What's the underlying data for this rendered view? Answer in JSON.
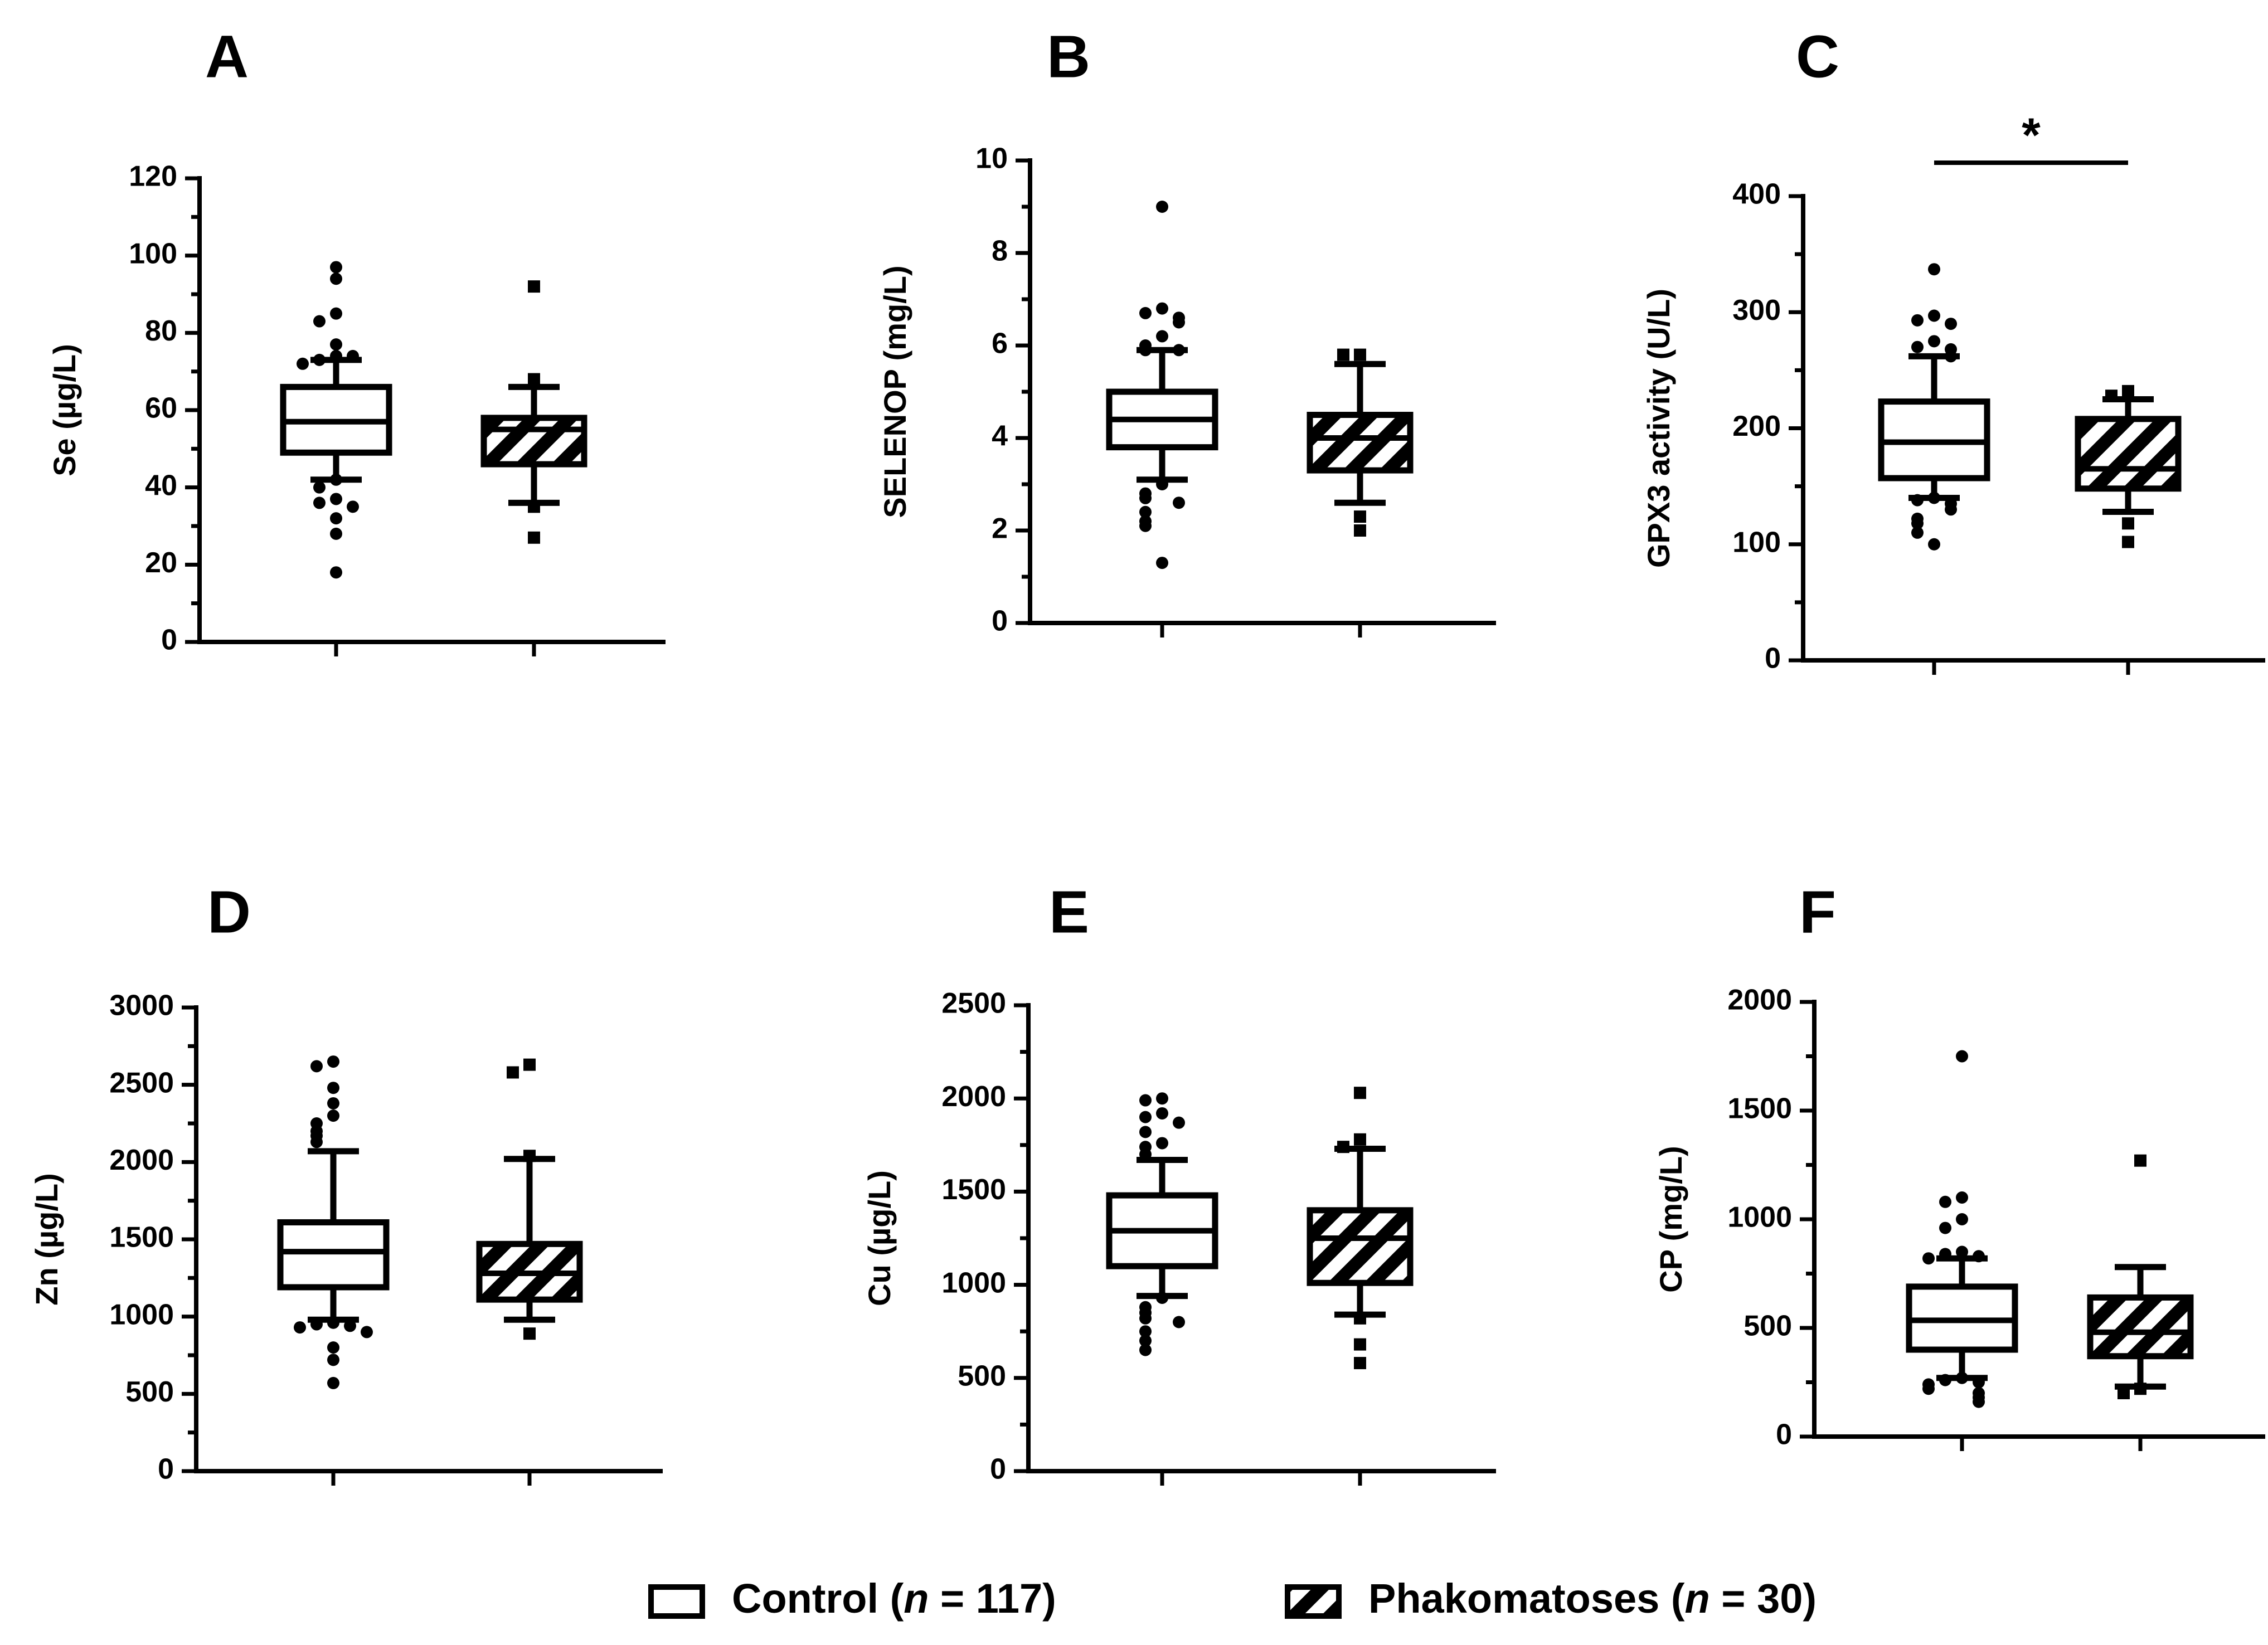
{
  "legend": [
    {
      "label": "Control (",
      "italic": "n",
      "rest": " = 117)",
      "pattern": "open"
    },
    {
      "label": "Phakomatoses (",
      "italic": "n",
      "rest": " = 30)",
      "pattern": "hatched"
    }
  ],
  "colors": {
    "ink": "#000000",
    "background": "#ffffff"
  },
  "chart_data": [
    {
      "panel": "A",
      "type": "box",
      "ylabel": "Se (µg/L)",
      "ylim": [
        0,
        120
      ],
      "yticks": [
        0,
        20,
        40,
        60,
        80,
        100,
        120
      ],
      "groups": [
        {
          "name": "Control (n = 117)",
          "whisker_low": 42,
          "q1": 49,
          "median": 57,
          "q3": 66,
          "whisker_high": 73,
          "outliers": [
            97,
            94,
            85,
            83,
            77,
            74,
            73,
            74,
            72,
            42,
            40,
            37,
            36,
            35,
            32,
            28,
            18
          ]
        },
        {
          "name": "Phakomatoses (n = 30)",
          "whisker_low": 36,
          "q1": 46,
          "median": 55,
          "q3": 58,
          "whisker_high": 66,
          "outliers": [
            92,
            68,
            35,
            27
          ]
        }
      ]
    },
    {
      "panel": "B",
      "type": "box",
      "ylabel": "SELENOP (mg/L)",
      "ylim": [
        0,
        10
      ],
      "yticks": [
        0,
        2,
        4,
        6,
        8,
        10
      ],
      "groups": [
        {
          "name": "Control (n = 117)",
          "whisker_low": 3.1,
          "q1": 3.8,
          "median": 4.4,
          "q3": 5.0,
          "whisker_high": 5.9,
          "outliers": [
            9.0,
            6.8,
            6.7,
            6.6,
            6.5,
            6.2,
            6.0,
            5.9,
            5.9,
            3.0,
            2.8,
            2.7,
            2.6,
            2.4,
            2.2,
            2.1,
            1.3
          ]
        },
        {
          "name": "Phakomatoses (n = 30)",
          "whisker_low": 2.6,
          "q1": 3.3,
          "median": 4.0,
          "q3": 4.5,
          "whisker_high": 5.6,
          "outliers": [
            5.8,
            5.8,
            2.3,
            2.0
          ]
        }
      ]
    },
    {
      "panel": "C",
      "type": "box",
      "ylabel": "GPX3 activity (U/L)",
      "ylim": [
        0,
        400
      ],
      "yticks": [
        0,
        100,
        200,
        300,
        400
      ],
      "significance": "*",
      "groups": [
        {
          "name": "Control (n = 117)",
          "whisker_low": 140,
          "q1": 157,
          "median": 188,
          "q3": 223,
          "whisker_high": 262,
          "outliers": [
            337,
            297,
            293,
            290,
            275,
            270,
            268,
            262,
            140,
            138,
            135,
            130,
            122,
            118,
            110,
            100
          ]
        },
        {
          "name": "Phakomatoses (n = 30)",
          "whisker_low": 128,
          "q1": 148,
          "median": 165,
          "q3": 208,
          "whisker_high": 225,
          "outliers": [
            232,
            228,
            118,
            102
          ]
        }
      ]
    },
    {
      "panel": "D",
      "type": "box",
      "ylabel": "Zn (µg/L)",
      "ylim": [
        0,
        3000
      ],
      "yticks": [
        0,
        500,
        1000,
        1500,
        2000,
        2500,
        3000
      ],
      "groups": [
        {
          "name": "Control (n = 117)",
          "whisker_low": 980,
          "q1": 1190,
          "median": 1420,
          "q3": 1610,
          "whisker_high": 2070,
          "outliers": [
            2650,
            2620,
            2480,
            2380,
            2300,
            2250,
            2200,
            2170,
            2130,
            960,
            950,
            940,
            930,
            900,
            800,
            720,
            570
          ]
        },
        {
          "name": "Phakomatoses (n = 30)",
          "whisker_low": 980,
          "q1": 1110,
          "median": 1280,
          "q3": 1470,
          "whisker_high": 2020,
          "outliers": [
            2630,
            2580,
            2040,
            890
          ]
        }
      ]
    },
    {
      "panel": "E",
      "type": "box",
      "ylabel": "Cu (µg/L)",
      "ylim": [
        0,
        2500
      ],
      "yticks": [
        0,
        500,
        1000,
        1500,
        2000,
        2500
      ],
      "groups": [
        {
          "name": "Control (n = 117)",
          "whisker_low": 940,
          "q1": 1100,
          "median": 1290,
          "q3": 1480,
          "whisker_high": 1670,
          "outliers": [
            2000,
            1990,
            1920,
            1900,
            1870,
            1820,
            1760,
            1740,
            1700,
            930,
            880,
            850,
            820,
            800,
            750,
            700,
            650
          ]
        },
        {
          "name": "Phakomatoses (n = 30)",
          "whisker_low": 840,
          "q1": 1010,
          "median": 1250,
          "q3": 1400,
          "whisker_high": 1730,
          "outliers": [
            2030,
            1780,
            1740,
            820,
            680,
            580
          ]
        }
      ]
    },
    {
      "panel": "F",
      "type": "box",
      "ylabel": "CP (mg/L)",
      "ylim": [
        0,
        2000
      ],
      "yticks": [
        0,
        500,
        1000,
        1500,
        2000
      ],
      "groups": [
        {
          "name": "Control (n = 117)",
          "whisker_low": 270,
          "q1": 400,
          "median": 535,
          "q3": 690,
          "whisker_high": 820,
          "outliers": [
            1750,
            1100,
            1080,
            1000,
            960,
            850,
            840,
            830,
            820,
            270,
            260,
            250,
            240,
            220,
            200,
            180,
            160
          ]
        },
        {
          "name": "Phakomatoses (n = 30)",
          "whisker_low": 230,
          "q1": 370,
          "median": 480,
          "q3": 640,
          "whisker_high": 780,
          "outliers": [
            1270,
            220,
            200
          ]
        }
      ]
    }
  ]
}
